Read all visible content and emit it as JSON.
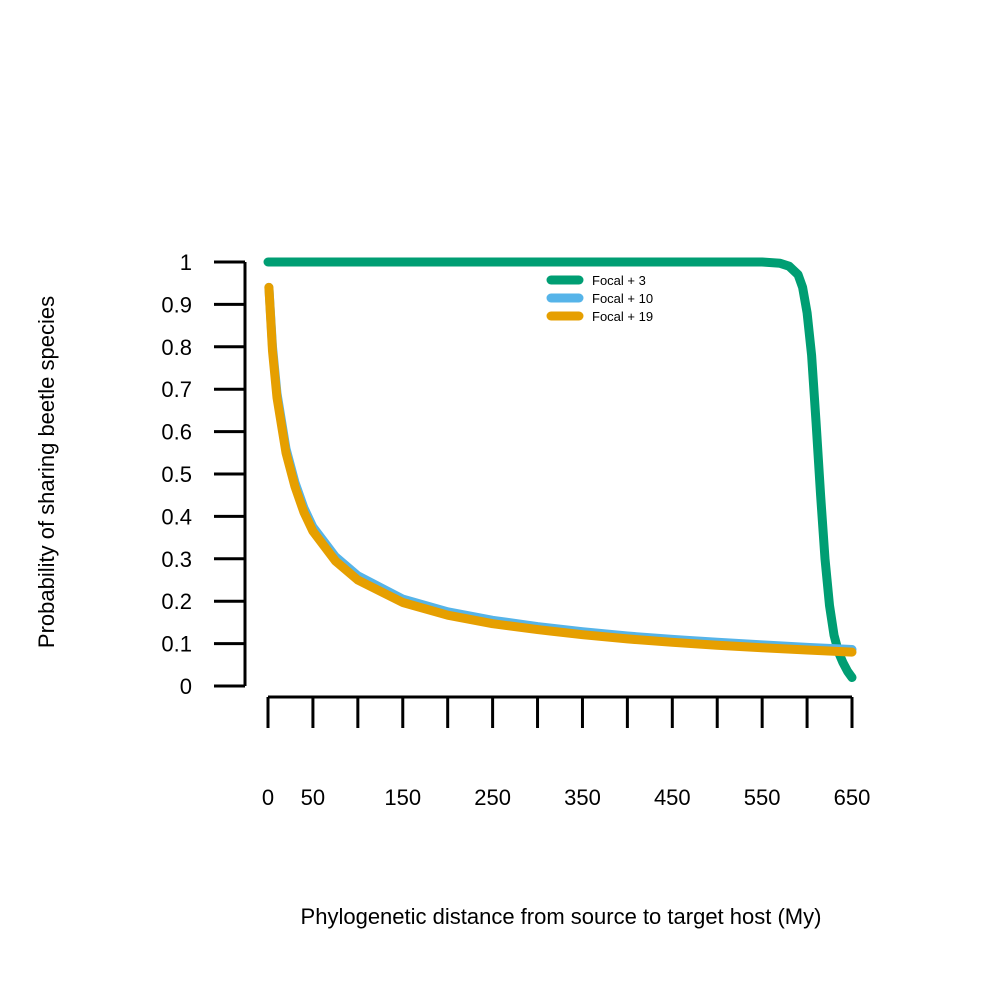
{
  "chart_data": {
    "type": "line",
    "xlabel": "Phylogenetic distance from source to target host (My)",
    "ylabel": "Probability of sharing beetle species",
    "xlim": [
      0,
      650
    ],
    "ylim": [
      0,
      1
    ],
    "x_ticks": [
      0,
      50,
      100,
      150,
      200,
      250,
      300,
      350,
      400,
      450,
      500,
      550,
      600,
      650
    ],
    "x_tick_labels": [
      "0",
      "50",
      "150",
      "250",
      "350",
      "450",
      "550",
      "650"
    ],
    "x_tick_label_values": [
      0,
      50,
      150,
      250,
      350,
      450,
      550,
      650
    ],
    "y_ticks": [
      0,
      0.1,
      0.2,
      0.3,
      0.4,
      0.5,
      0.6,
      0.7,
      0.8,
      0.9,
      1
    ],
    "y_tick_labels": [
      "0",
      "0.1",
      "0.2",
      "0.3",
      "0.4",
      "0.5",
      "0.6",
      "0.7",
      "0.8",
      "0.9",
      "1"
    ],
    "grid": false,
    "legend_position": "top-center",
    "series": [
      {
        "name": "Focal + 3",
        "color": "#009E73",
        "x": [
          0,
          50,
          100,
          150,
          200,
          250,
          300,
          350,
          400,
          450,
          500,
          550,
          570,
          580,
          590,
          595,
          600,
          605,
          610,
          615,
          620,
          625,
          630,
          635,
          640,
          645,
          650
        ],
        "y": [
          1,
          1,
          1,
          1,
          1,
          1,
          1,
          1,
          1,
          1,
          1,
          1,
          0.997,
          0.99,
          0.97,
          0.94,
          0.88,
          0.78,
          0.62,
          0.45,
          0.3,
          0.19,
          0.12,
          0.08,
          0.055,
          0.035,
          0.02
        ]
      },
      {
        "name": "Focal + 10",
        "color": "#56B4E9",
        "x": [
          1,
          5,
          10,
          20,
          30,
          40,
          50,
          75,
          100,
          150,
          200,
          250,
          300,
          350,
          400,
          450,
          500,
          550,
          600,
          650
        ],
        "y": [
          0.94,
          0.8,
          0.69,
          0.56,
          0.48,
          0.42,
          0.375,
          0.305,
          0.26,
          0.205,
          0.175,
          0.155,
          0.14,
          0.128,
          0.118,
          0.11,
          0.103,
          0.097,
          0.091,
          0.086
        ]
      },
      {
        "name": "Focal + 19",
        "color": "#E69F00",
        "x": [
          1,
          5,
          10,
          20,
          30,
          40,
          50,
          75,
          100,
          150,
          200,
          250,
          300,
          350,
          400,
          450,
          500,
          550,
          600,
          650
        ],
        "y": [
          0.94,
          0.79,
          0.68,
          0.55,
          0.47,
          0.41,
          0.365,
          0.295,
          0.25,
          0.197,
          0.167,
          0.147,
          0.133,
          0.121,
          0.111,
          0.103,
          0.096,
          0.09,
          0.085,
          0.08
        ]
      }
    ]
  }
}
